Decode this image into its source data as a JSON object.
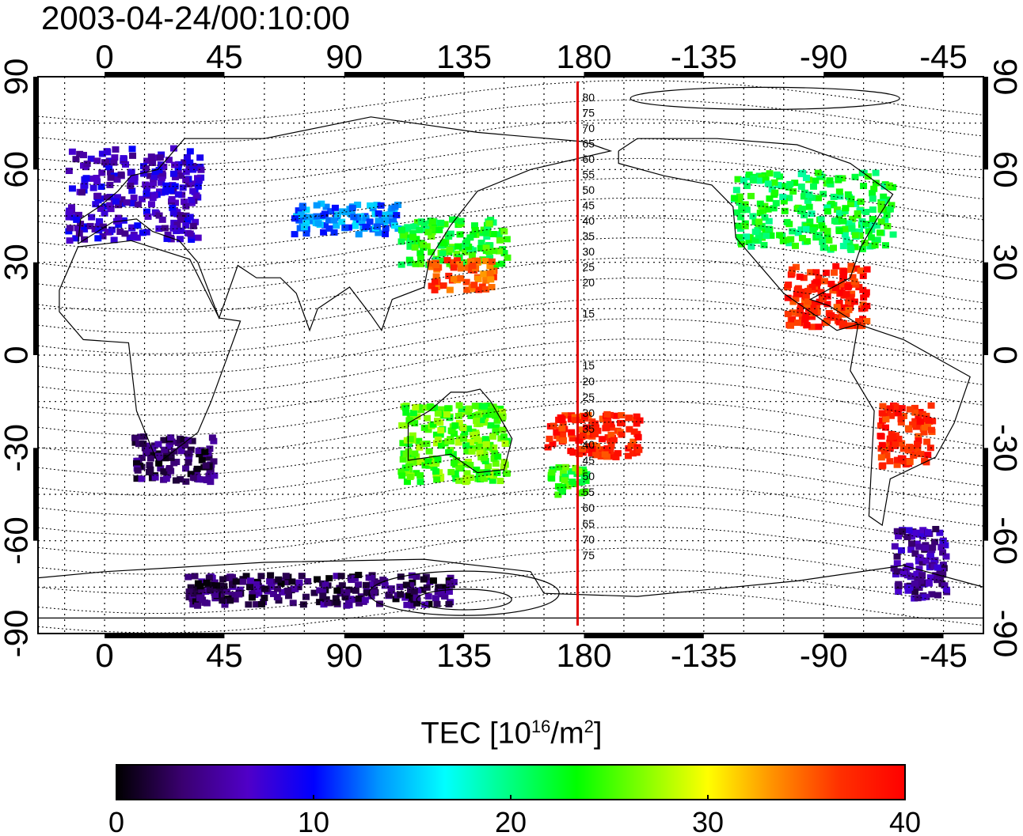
{
  "title": "2003-04-24/00:10:00",
  "map": {
    "top_lon_ticks": [
      "0",
      "45",
      "90",
      "135",
      "180",
      "-135",
      "-90",
      "-45"
    ],
    "bottom_lon_ticks": [
      "0",
      "45",
      "90",
      "135",
      "180",
      "-135",
      "-90",
      "-45"
    ],
    "left_lat_ticks": [
      "90",
      "60",
      "30",
      "0",
      "-30",
      "-60",
      "-90"
    ],
    "right_lat_ticks": [
      "90",
      "60",
      "30",
      "0",
      "-30",
      "-60",
      "-90"
    ],
    "lon_range": [
      -25,
      330
    ],
    "lat_range": [
      -90,
      90
    ],
    "meridian_line": {
      "lon": 180,
      "color": "#e00000"
    },
    "north_labels": [
      "80",
      "75",
      "70",
      "65",
      "60",
      "55",
      "50",
      "45",
      "40",
      "35",
      "30",
      "25",
      "20",
      "15"
    ],
    "south_labels": [
      "15",
      "20",
      "25",
      "30",
      "35",
      "40",
      "45",
      "50",
      "55",
      "60",
      "65",
      "70",
      "75"
    ]
  },
  "colorbar": {
    "label_main": "TEC  [10",
    "label_exp1": "16",
    "label_mid": "/m",
    "label_exp2": "2",
    "label_end": "]",
    "ticks": [
      "0",
      "10",
      "20",
      "30",
      "40"
    ],
    "range": [
      0,
      40
    ],
    "colors": [
      "#000000",
      "#3a0070",
      "#5000c8",
      "#0000ff",
      "#0096ff",
      "#00ffff",
      "#00ff80",
      "#00ff00",
      "#80ff00",
      "#ffff00",
      "#ff9000",
      "#ff3000",
      "#ff0000"
    ]
  },
  "chart_data": {
    "type": "heatmap",
    "title": "2003-04-24/00:10:00",
    "colorbar_label": "TEC [10^16/m^2]",
    "value_range": [
      0,
      40
    ],
    "regions": [
      {
        "lon": [
          -15,
          35
        ],
        "lat": [
          38,
          68
        ],
        "value": 7
      },
      {
        "lon": [
          70,
          110
        ],
        "lat": [
          40,
          50
        ],
        "value": 13
      },
      {
        "lon": [
          110,
          150
        ],
        "lat": [
          30,
          45
        ],
        "value": 23
      },
      {
        "lon": [
          120,
          145
        ],
        "lat": [
          22,
          32
        ],
        "value": 36
      },
      {
        "lon": [
          110,
          150
        ],
        "lat": [
          -40,
          -15
        ],
        "value": 25
      },
      {
        "lon": [
          165,
          180
        ],
        "lat": [
          -45,
          -35
        ],
        "value": 24
      },
      {
        "lon": [
          165,
          200
        ],
        "lat": [
          -32,
          -18
        ],
        "value": 38
      },
      {
        "lon": [
          235,
          295
        ],
        "lat": [
          35,
          60
        ],
        "value": 22
      },
      {
        "lon": [
          255,
          285
        ],
        "lat": [
          10,
          30
        ],
        "value": 38
      },
      {
        "lon": [
          290,
          310
        ],
        "lat": [
          -35,
          -15
        ],
        "value": 38
      },
      {
        "lon": [
          10,
          40
        ],
        "lat": [
          -40,
          -25
        ],
        "value": 3
      },
      {
        "lon": [
          30,
          130
        ],
        "lat": [
          -80,
          -70
        ],
        "value": 3
      },
      {
        "lon": [
          295,
          315
        ],
        "lat": [
          -78,
          -55
        ],
        "value": 5
      }
    ]
  }
}
